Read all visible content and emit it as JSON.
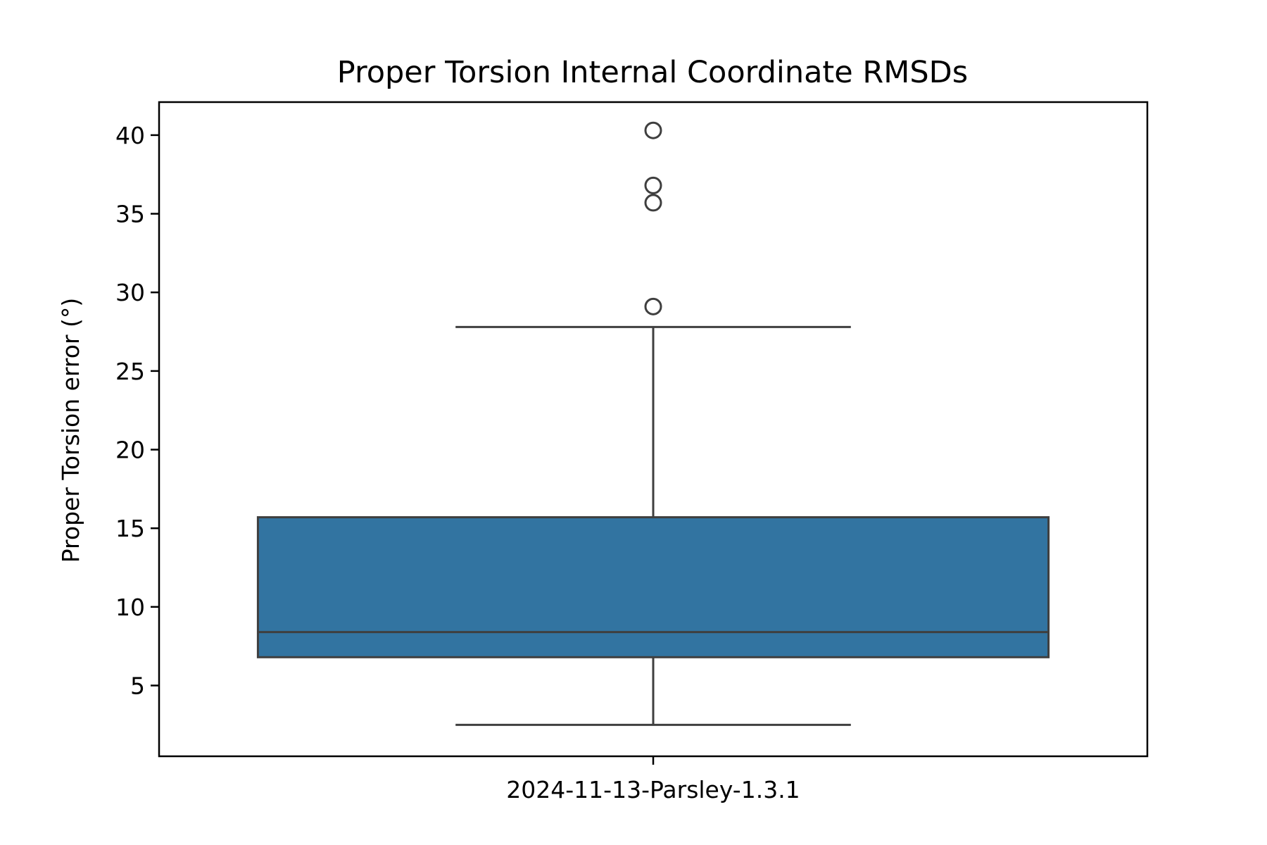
{
  "chart_data": {
    "type": "box",
    "title": "Proper Torsion Internal Coordinate RMSDs",
    "xlabel": "",
    "ylabel": "Proper Torsion error (°)",
    "categories": [
      "2024-11-13-Parsley-1.3.1"
    ],
    "yticks": [
      5,
      10,
      15,
      20,
      25,
      30,
      35,
      40
    ],
    "ylim": [
      0.5,
      42.1
    ],
    "grid": false,
    "boxes": [
      {
        "category": "2024-11-13-Parsley-1.3.1",
        "whisker_low": 2.5,
        "q1": 6.8,
        "median": 8.4,
        "q3": 15.7,
        "whisker_high": 27.8,
        "outliers": [
          29.1,
          35.7,
          36.8,
          40.3
        ]
      }
    ],
    "colors": {
      "box_fill": "#3274a1",
      "line": "#3f3f3f",
      "axes": "#000000"
    }
  }
}
